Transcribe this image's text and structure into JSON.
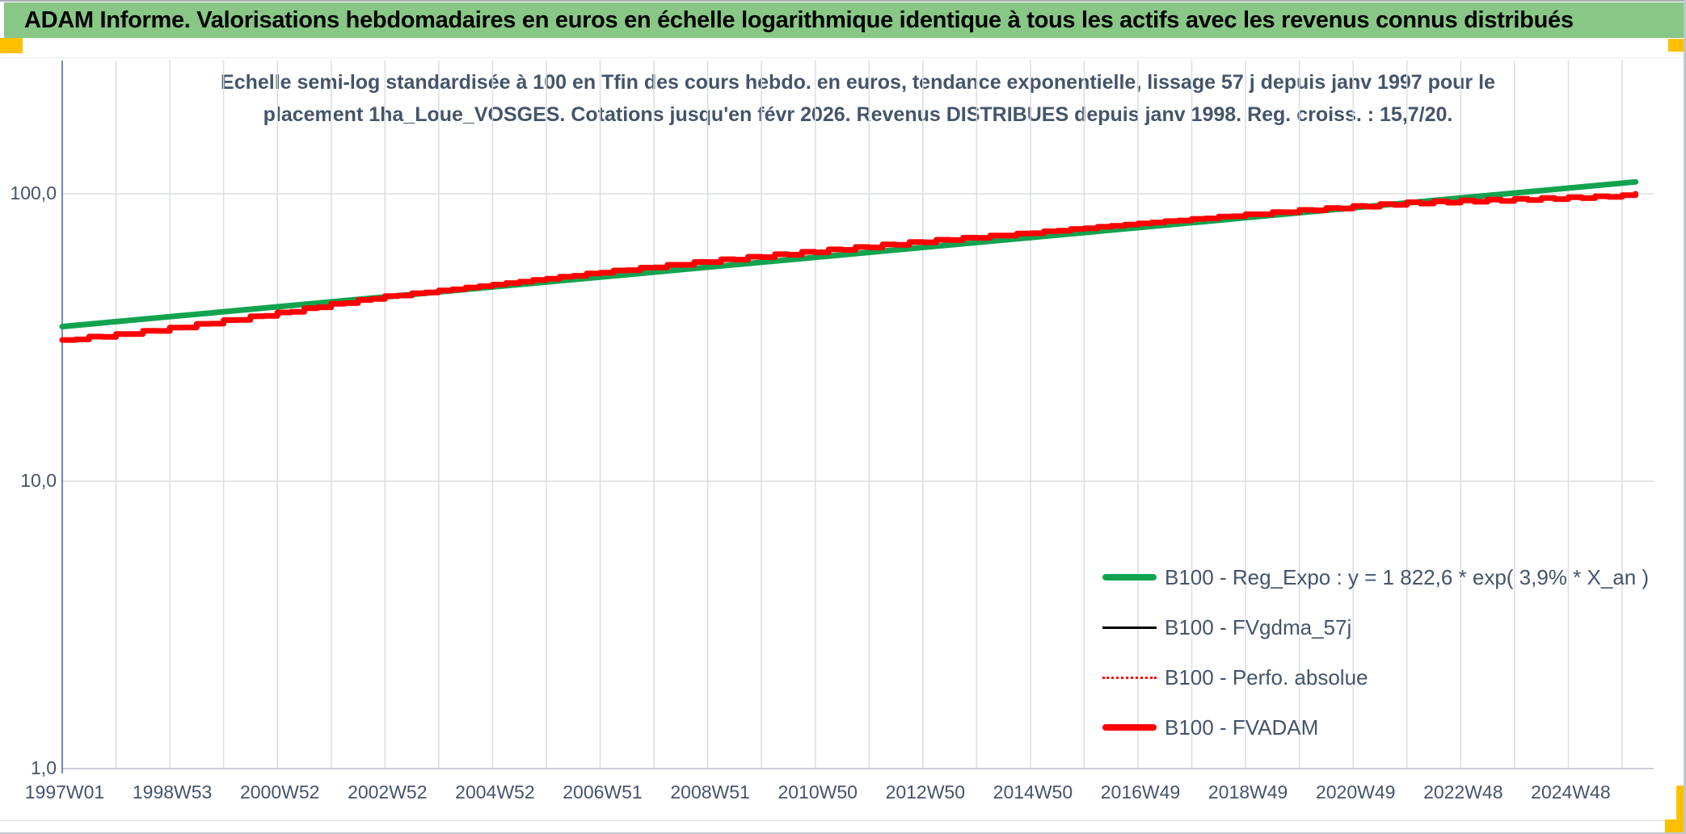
{
  "header": {
    "title": "ADAM Informe. Valorisations hebdomadaires en euros en échelle logarithmique identique à tous les actifs avec les revenus connus distribués"
  },
  "colors": {
    "header_bg": "#88C786",
    "accent_orange": "#FFC000",
    "title_text": "#44546A",
    "label_text": "#44546A",
    "grid": "#DADDE2",
    "axis_line": "#7388B9",
    "axis_bottom": "#C9CDD4",
    "green": "#12A34F",
    "red": "#FF0000",
    "black": "#000000"
  },
  "chart_data": {
    "type": "line",
    "title_lines": [
      "Echelle semi-log standardisée à 100 en Tfin des cours hebdo. en euros, tendance exponentielle, lissage 57 j depuis janv 1997 pour le",
      "placement 1ha_Loue_VOSGES. Cotations jusqu'en févr 2026. Revenus DISTRIBUES depuis janv 1998. Reg. croiss. : 15,7/20."
    ],
    "y_axis": {
      "scale": "log",
      "tick_labels": [
        "100,0",
        "10,0",
        "1,0"
      ],
      "tick_values": [
        100,
        10,
        1
      ],
      "gridline_values": [
        100,
        10
      ]
    },
    "x_axis": {
      "tick_labels": [
        "1997W01",
        "1998W53",
        "2000W52",
        "2002W52",
        "2004W52",
        "2006W51",
        "2008W51",
        "2010W50",
        "2012W50",
        "2014W50",
        "2016W49",
        "2018W49",
        "2020W49",
        "2022W48",
        "2024W48"
      ],
      "start_year": 1997,
      "end_year": 2026.25,
      "tick_interval_years": 2,
      "gridline_interval_years": 1
    },
    "legend_position": "inside-right-lower",
    "series": [
      {
        "name": "B100 - Reg_Expo : y = 1 822,6 * exp( 3,9% *  X_an )",
        "color": "#12A34F",
        "style": "solid",
        "weight": "thick",
        "points": [
          [
            1997.0,
            34.5
          ],
          [
            2026.25,
            110.0
          ]
        ]
      },
      {
        "name": "B100 - FVgdma_57j",
        "color": "#000000",
        "style": "solid",
        "weight": "thin",
        "coincides_with": "B100 - FVADAM"
      },
      {
        "name": "B100 - Perfo. absolue",
        "color": "#FF0000",
        "style": "dotted",
        "weight": "thin",
        "coincides_with": "B100 - FVADAM"
      },
      {
        "name": "B100 - FVADAM",
        "color": "#FF0000",
        "style": "stepped",
        "weight": "thick",
        "points": [
          [
            1997.0,
            31.0
          ],
          [
            1998,
            32.3
          ],
          [
            1999,
            34.0
          ],
          [
            2000,
            36.1
          ],
          [
            2001,
            38.4
          ],
          [
            2002,
            41.2
          ],
          [
            2003,
            43.9
          ],
          [
            2004,
            46.0
          ],
          [
            2005,
            48.3
          ],
          [
            2006,
            50.7
          ],
          [
            2007,
            53.3
          ],
          [
            2008,
            55.7
          ],
          [
            2009,
            58.2
          ],
          [
            2010,
            60.6
          ],
          [
            2011,
            63.0
          ],
          [
            2012,
            65.5
          ],
          [
            2013,
            68.2
          ],
          [
            2014,
            70.6
          ],
          [
            2015,
            73.1
          ],
          [
            2016,
            76.0
          ],
          [
            2017,
            78.8
          ],
          [
            2018,
            81.6
          ],
          [
            2019,
            84.5
          ],
          [
            2020,
            87.4
          ],
          [
            2021,
            90.1
          ],
          [
            2022,
            92.8
          ],
          [
            2023,
            94.1
          ],
          [
            2024,
            95.4
          ],
          [
            2025,
            96.7
          ],
          [
            2026,
            98.4
          ],
          [
            2026.25,
            100.0
          ]
        ]
      }
    ]
  }
}
